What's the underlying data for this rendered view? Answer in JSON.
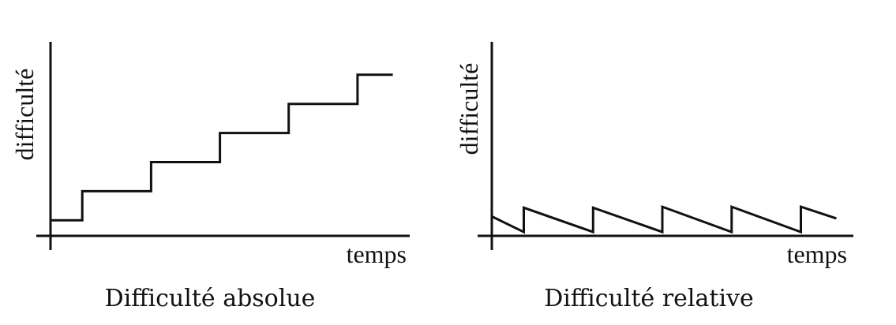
{
  "chart_data": [
    {
      "type": "line",
      "title": "Difficulté absolue",
      "xlabel": "temps",
      "ylabel": "difficulté",
      "xlim": [
        0,
        10
      ],
      "ylim": [
        0,
        10
      ],
      "grid": false,
      "series": [
        {
          "x": [
            0,
            0.9,
            0.9,
            2.85,
            2.85,
            4.8,
            4.8,
            6.75,
            6.75,
            8.7,
            8.7,
            9.7
          ],
          "y": [
            0.8,
            0.8,
            2.3,
            2.3,
            3.8,
            3.8,
            5.3,
            5.3,
            6.8,
            6.8,
            8.3,
            8.3
          ]
        }
      ]
    },
    {
      "type": "line",
      "title": "Difficulté relative",
      "xlabel": "temps",
      "ylabel": "difficulté",
      "xlim": [
        0,
        10
      ],
      "ylim": [
        0,
        10
      ],
      "grid": false,
      "series": [
        {
          "x": [
            0,
            0.9,
            0.9,
            2.85,
            2.85,
            4.8,
            4.8,
            6.75,
            6.75,
            8.7,
            8.7,
            9.7
          ],
          "y": [
            1.0,
            0.2,
            1.45,
            0.2,
            1.45,
            0.2,
            1.5,
            0.2,
            1.5,
            0.2,
            1.5,
            0.9
          ]
        }
      ]
    }
  ]
}
